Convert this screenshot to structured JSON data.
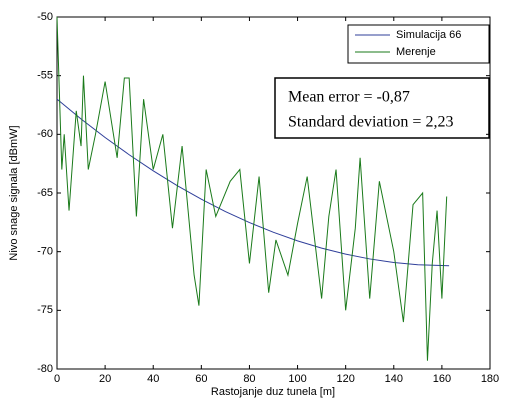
{
  "chart_data": {
    "type": "line",
    "xlabel": "Rastojanje duz tunela [m]",
    "ylabel": "Nivo snage signala [dBmW]",
    "xlim": [
      0,
      180
    ],
    "xticks": [
      0,
      20,
      40,
      60,
      80,
      100,
      120,
      140,
      160,
      180
    ],
    "ylim": [
      -80,
      -50
    ],
    "yticks": [
      -80,
      -75,
      -70,
      -65,
      -60,
      -55,
      -50
    ],
    "legend": "upper right",
    "annotations": [
      "Mean error = -0,87",
      "Standard deviation = 2,23"
    ],
    "series": [
      {
        "name": "Simulacija 66",
        "color": "#2f3f9a",
        "x": [
          0,
          10,
          20,
          30,
          40,
          50,
          60,
          70,
          80,
          90,
          100,
          110,
          120,
          130,
          140,
          150,
          163
        ],
        "values": [
          -57,
          -58.69,
          -60.27,
          -61.74,
          -63.11,
          -64.38,
          -65.53,
          -66.58,
          -67.52,
          -68.35,
          -69.08,
          -69.7,
          -70.21,
          -70.62,
          -70.92,
          -71.11,
          -71.2
        ]
      },
      {
        "name": "Merenje",
        "color": "#1a7a1a",
        "x": [
          0,
          1,
          2,
          3,
          5,
          8,
          10,
          11,
          13,
          16,
          20,
          25,
          28,
          30,
          33,
          36,
          40,
          44,
          48,
          52,
          57,
          59,
          62,
          66,
          72,
          76,
          80,
          84,
          88,
          91,
          96,
          100,
          104,
          110,
          113,
          116,
          120,
          124,
          126,
          130,
          134,
          140,
          144,
          148,
          152,
          154,
          156,
          158,
          160,
          162
        ],
        "values": [
          -50,
          -56.5,
          -63,
          -60,
          -66.5,
          -58,
          -61,
          -55,
          -63,
          -60,
          -55.5,
          -62,
          -55.2,
          -55.2,
          -67,
          -57,
          -63,
          -60,
          -68,
          -61,
          -72,
          -74.6,
          -63,
          -67,
          -64,
          -63,
          -71,
          -63.6,
          -73.5,
          -69,
          -72,
          -67.6,
          -63.6,
          -74,
          -67,
          -63,
          -75,
          -68,
          -62,
          -74,
          -64,
          -70,
          -76,
          -66,
          -65,
          -79.3,
          -71,
          -66.5,
          -74,
          -65.3
        ]
      }
    ]
  }
}
